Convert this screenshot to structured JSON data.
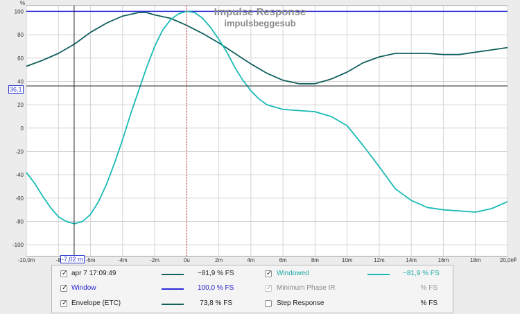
{
  "title": "Impulse Response",
  "subtitle": "impulsbeggesub",
  "y_unit": "%",
  "x_unit": "s",
  "cursor": {
    "y_readout": "36,1",
    "x_readout": "-7,02 m"
  },
  "colors": {
    "envelope": "#11605e",
    "windowed": "#19bab6",
    "window": "#2a2ad8",
    "cursor_line": "#222222",
    "zero_marker": "#e23030",
    "grid": "#d4d4d4",
    "plot_bg": "#ffffff"
  },
  "chart_data": {
    "type": "line",
    "title": "Impulse Response",
    "subtitle": "impulsbeggesub",
    "xlabel": "s",
    "ylabel": "%",
    "xlim": [
      -10,
      20
    ],
    "ylim": [
      -110,
      105
    ],
    "grid": true,
    "x_ticks": [
      -10,
      -8,
      -6,
      -4,
      -2,
      0,
      2,
      4,
      6,
      8,
      10,
      12,
      14,
      16,
      18,
      20
    ],
    "x_tick_labels": [
      "-10,0m",
      "-8",
      "-6m",
      "-4m",
      "-2m",
      "0u",
      "2m",
      "4m",
      "6m",
      "8m",
      "10m",
      "12m",
      "14m",
      "16m",
      "18m",
      "20,0m"
    ],
    "y_ticks": [
      -100,
      -80,
      -60,
      -40,
      -20,
      0,
      20,
      40,
      60,
      80,
      100
    ],
    "y_tick_labels": [
      "-100",
      "-80",
      "-60",
      "-40",
      "-20",
      "0",
      "20",
      "40",
      "60",
      "80",
      "100"
    ],
    "series": [
      {
        "name": "Envelope (ETC)",
        "x": [
          -10,
          -9,
          -8,
          -7,
          -6,
          -5,
          -4,
          -3,
          -2.5,
          -2,
          -1,
          0,
          1,
          2,
          3,
          4,
          5,
          6,
          7,
          8,
          9,
          10,
          11,
          12,
          13,
          14,
          15,
          16,
          17,
          18,
          19,
          20
        ],
        "y": [
          53,
          58,
          64,
          72,
          82,
          90,
          96,
          99,
          99,
          97,
          94,
          88,
          81,
          73,
          64,
          55,
          47,
          41,
          38,
          38,
          42,
          48,
          56,
          61,
          64,
          64,
          64,
          63,
          63,
          65,
          67,
          69
        ]
      },
      {
        "name": "Windowed",
        "x": [
          -10,
          -9.5,
          -9,
          -8.5,
          -8,
          -7.5,
          -7,
          -6.5,
          -6,
          -5.5,
          -5,
          -4.5,
          -4,
          -3.5,
          -3,
          -2.5,
          -2,
          -1.5,
          -1,
          -0.5,
          0,
          0.5,
          1,
          1.5,
          2,
          2.5,
          3,
          3.5,
          4,
          4.5,
          5,
          5.5,
          6,
          7,
          8,
          9,
          10,
          11,
          12,
          13,
          14,
          15,
          16,
          17,
          18,
          19,
          20
        ],
        "y": [
          -38,
          -47,
          -58,
          -68,
          -76,
          -80,
          -82,
          -80,
          -74,
          -63,
          -48,
          -30,
          -10,
          12,
          32,
          52,
          70,
          84,
          93,
          98,
          100,
          99,
          94,
          86,
          76,
          65,
          52,
          41,
          32,
          25,
          20,
          18,
          16,
          15,
          14,
          10,
          2,
          -15,
          -33,
          -52,
          -62,
          -68,
          -70,
          -71,
          -72,
          -69,
          -63
        ]
      },
      {
        "name": "Window",
        "x": [
          -10,
          20
        ],
        "y": [
          100,
          100
        ]
      }
    ],
    "cursor": {
      "x": -7.02,
      "y": 36.1
    },
    "marker_x": 0
  },
  "legend": {
    "rows": [
      {
        "left": {
          "label": "apr 7 17:09:49",
          "value": "−81,9 % FS",
          "checked": true,
          "disabled": false,
          "color": "#11605e",
          "label_color": "#222222"
        },
        "right": {
          "label": "Windowed",
          "value": "−81,9 % FS",
          "checked": true,
          "disabled": false,
          "color": "#19bab6",
          "label_color": "#19a8a4"
        }
      },
      {
        "left": {
          "label": "Window",
          "value": "100,0 % FS",
          "checked": true,
          "disabled": false,
          "color": "#2a2ad8",
          "label_color": "#1f1fcc"
        },
        "right": {
          "label": "Minimum Phase IR",
          "value": "% FS",
          "checked": true,
          "disabled": true,
          "color": "",
          "label_color": "#8a8a8a"
        }
      },
      {
        "left": {
          "label": "Envelope (ETC)",
          "value": "73,8 % FS",
          "checked": true,
          "disabled": false,
          "color": "#11605e",
          "label_color": "#222222"
        },
        "right": {
          "label": "Step Response",
          "value": "% FS",
          "checked": false,
          "disabled": false,
          "color": "",
          "label_color": "#222222"
        }
      }
    ]
  }
}
